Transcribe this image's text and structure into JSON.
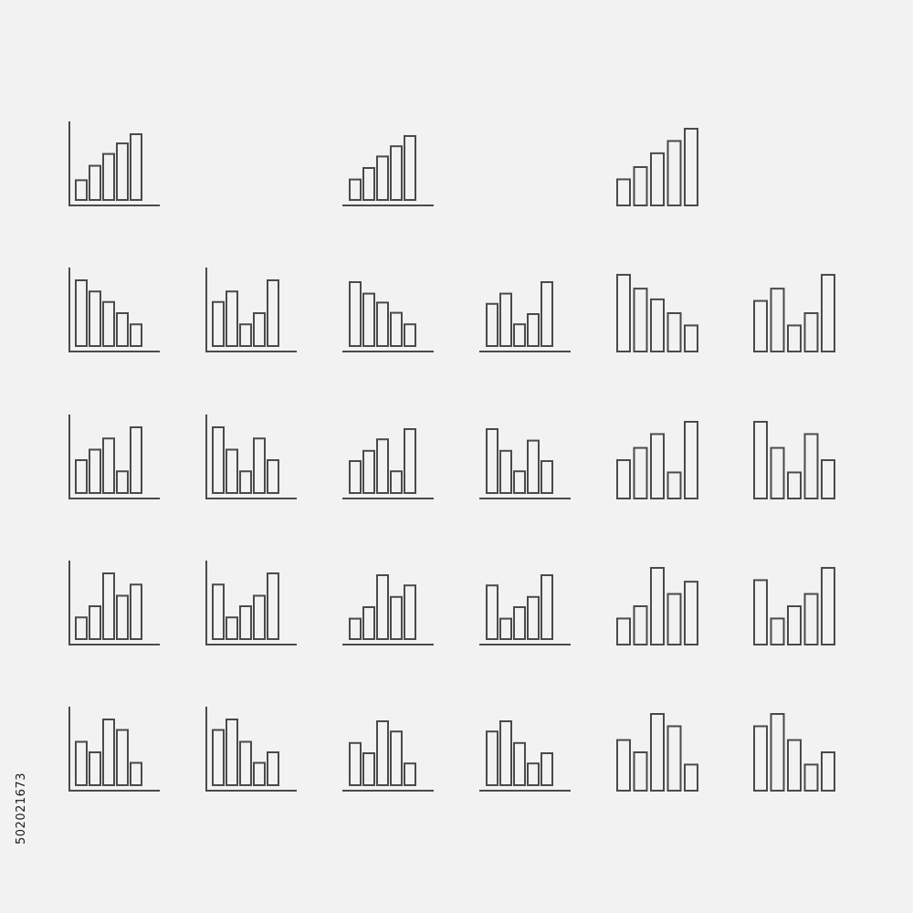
{
  "page": {
    "background": "#f2f2f2",
    "stroke_color": "#4a4a4a",
    "stock_id": "502021673"
  },
  "icons": [
    {
      "variant": "axes",
      "bars": [
        0.3,
        0.52,
        0.7,
        0.86,
        1.0
      ]
    },
    {
      "variant": "baseline",
      "bars": [
        0.32,
        0.5,
        0.68,
        0.84,
        1.0
      ]
    },
    {
      "variant": "plain",
      "bars": [
        0.34,
        0.5,
        0.68,
        0.84,
        1.0
      ]
    },
    {
      "variant": "axes",
      "bars": [
        1.0,
        0.83,
        0.67,
        0.5,
        0.33
      ]
    },
    {
      "variant": "axes",
      "bars": [
        0.67,
        0.83,
        0.33,
        0.5,
        1.0
      ]
    },
    {
      "variant": "baseline",
      "bars": [
        1.0,
        0.82,
        0.68,
        0.52,
        0.34
      ]
    },
    {
      "variant": "baseline",
      "bars": [
        0.66,
        0.82,
        0.34,
        0.5,
        1.0
      ]
    },
    {
      "variant": "plain",
      "bars": [
        1.0,
        0.82,
        0.68,
        0.5,
        0.34
      ]
    },
    {
      "variant": "plain",
      "bars": [
        0.66,
        0.82,
        0.34,
        0.5,
        1.0
      ]
    },
    {
      "variant": "axes",
      "bars": [
        0.5,
        0.66,
        0.83,
        0.33,
        1.0
      ]
    },
    {
      "variant": "axes",
      "bars": [
        1.0,
        0.66,
        0.33,
        0.83,
        0.5
      ]
    },
    {
      "variant": "baseline",
      "bars": [
        0.5,
        0.66,
        0.84,
        0.34,
        1.0
      ]
    },
    {
      "variant": "baseline",
      "bars": [
        1.0,
        0.66,
        0.34,
        0.82,
        0.5
      ]
    },
    {
      "variant": "plain",
      "bars": [
        0.5,
        0.66,
        0.84,
        0.34,
        1.0
      ]
    },
    {
      "variant": "plain",
      "bars": [
        1.0,
        0.66,
        0.34,
        0.84,
        0.5
      ]
    },
    {
      "variant": "axes",
      "bars": [
        0.33,
        0.5,
        1.0,
        0.66,
        0.83
      ]
    },
    {
      "variant": "axes",
      "bars": [
        0.83,
        0.33,
        0.5,
        0.66,
        1.0
      ]
    },
    {
      "variant": "baseline",
      "bars": [
        0.32,
        0.5,
        1.0,
        0.66,
        0.84
      ]
    },
    {
      "variant": "baseline",
      "bars": [
        0.84,
        0.32,
        0.5,
        0.66,
        1.0
      ]
    },
    {
      "variant": "plain",
      "bars": [
        0.34,
        0.5,
        1.0,
        0.66,
        0.82
      ]
    },
    {
      "variant": "plain",
      "bars": [
        0.84,
        0.34,
        0.5,
        0.66,
        1.0
      ]
    },
    {
      "variant": "axes",
      "bars": [
        0.66,
        0.5,
        1.0,
        0.84,
        0.34
      ]
    },
    {
      "variant": "axes",
      "bars": [
        0.84,
        1.0,
        0.66,
        0.34,
        0.5
      ]
    },
    {
      "variant": "baseline",
      "bars": [
        0.66,
        0.5,
        1.0,
        0.84,
        0.34
      ]
    },
    {
      "variant": "baseline",
      "bars": [
        0.84,
        1.0,
        0.66,
        0.34,
        0.5
      ]
    },
    {
      "variant": "plain",
      "bars": [
        0.66,
        0.5,
        1.0,
        0.84,
        0.34
      ]
    },
    {
      "variant": "plain",
      "bars": [
        0.84,
        1.0,
        0.66,
        0.34,
        0.5
      ]
    }
  ]
}
